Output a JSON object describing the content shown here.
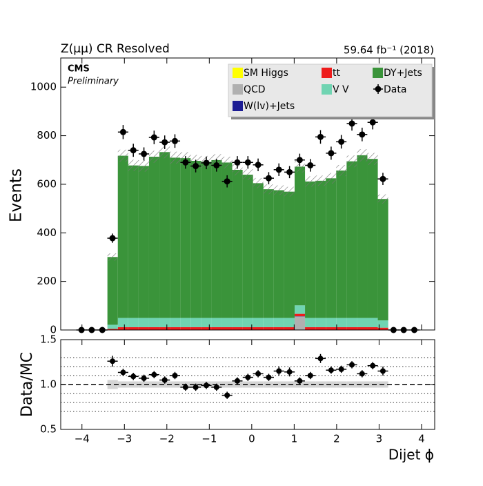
{
  "chart_data": [
    {
      "type": "stacked_histogram",
      "title": "Z(μμ) CR Resolved",
      "subtitle": "59.64 fb⁻¹ (2018)",
      "experiment": "CMS",
      "status": "Preliminary",
      "ylabel": "Events",
      "xlim": [
        -4.5,
        4.31
      ],
      "ylim": [
        0,
        1120
      ],
      "yticks": [
        0,
        200,
        400,
        600,
        800,
        1000
      ],
      "bins": [
        -3.4,
        -3.155,
        -2.91,
        -2.665,
        -2.42,
        -2.175,
        -1.93,
        -1.685,
        -1.44,
        -1.195,
        -0.95,
        -0.705,
        -0.46,
        -0.215,
        0.03,
        0.275,
        0.52,
        0.765,
        1.01,
        1.255,
        1.5,
        1.745,
        1.99,
        2.235,
        2.48,
        2.725,
        2.97,
        3.215
      ],
      "legend_position": "upper right",
      "series": [
        {
          "name": "SM Higgs",
          "color": "#ffff00",
          "values": [
            0.5,
            0.5,
            0.5,
            0.5,
            0.5,
            0.5,
            0.5,
            0.5,
            0.5,
            0.5,
            0.5,
            0.5,
            0.5,
            0.5,
            0.5,
            0.5,
            0.5,
            0.5,
            0.5,
            0.5,
            0.5,
            0.5,
            0.5,
            0.5,
            0.5,
            0.5,
            0.5
          ]
        },
        {
          "name": "QCD",
          "color": "#b0b0b0",
          "values": [
            0,
            0,
            0,
            0,
            0,
            0,
            0,
            0,
            0,
            0,
            0,
            0,
            0,
            0,
            0,
            0,
            0,
            0,
            55,
            0,
            0,
            0,
            0,
            0,
            0,
            0,
            0
          ]
        },
        {
          "name": "W(lv)+Jets",
          "color": "#1c1c94",
          "values": [
            1,
            1,
            1,
            1,
            1,
            1,
            1,
            1,
            1,
            1,
            1,
            1,
            1,
            1,
            1,
            1,
            1,
            1,
            1,
            1,
            1,
            1,
            1,
            1,
            1,
            1,
            1
          ]
        },
        {
          "name": "tt",
          "color": "#ee1c1c",
          "values": [
            3,
            10,
            10,
            10,
            10,
            10,
            10,
            10,
            10,
            10,
            10,
            10,
            10,
            10,
            10,
            10,
            10,
            10,
            10,
            10,
            10,
            10,
            10,
            10,
            10,
            10,
            8
          ]
        },
        {
          "name": "V V",
          "color": "#70d4b2",
          "values": [
            17,
            38,
            38,
            38,
            38,
            38,
            38,
            38,
            38,
            38,
            38,
            38,
            38,
            38,
            38,
            38,
            38,
            38,
            35,
            38,
            38,
            38,
            38,
            38,
            38,
            38,
            30
          ]
        },
        {
          "name": "DY+Jets",
          "color": "#3a943a",
          "values": [
            279,
            668,
            628,
            626,
            664,
            683,
            660,
            658,
            647,
            643,
            650,
            640,
            610,
            590,
            555,
            530,
            526,
            520,
            571,
            562,
            565,
            575,
            607,
            645,
            670,
            655,
            500
          ]
        }
      ],
      "mc_rel_uncertainty": [
        0.05,
        0.035,
        0.035,
        0.035,
        0.035,
        0.035,
        0.035,
        0.035,
        0.035,
        0.035,
        0.035,
        0.035,
        0.035,
        0.035,
        0.035,
        0.035,
        0.035,
        0.035,
        0.035,
        0.035,
        0.035,
        0.035,
        0.035,
        0.035,
        0.035,
        0.035,
        0.035
      ],
      "data_points": {
        "name": "Data",
        "color": "#000000",
        "x": [
          -4.01,
          -3.77,
          -3.52,
          -3.28,
          -3.03,
          -2.79,
          -2.54,
          -2.3,
          -2.05,
          -1.81,
          -1.56,
          -1.32,
          -1.07,
          -0.83,
          -0.58,
          -0.34,
          -0.09,
          0.15,
          0.4,
          0.64,
          0.89,
          1.13,
          1.38,
          1.62,
          1.87,
          2.11,
          2.36,
          2.6,
          2.85,
          3.09,
          3.34,
          3.58,
          3.83
        ],
        "values": [
          0,
          0,
          0,
          378,
          815,
          740,
          725,
          793,
          773,
          778,
          690,
          675,
          688,
          678,
          612,
          690,
          690,
          680,
          625,
          660,
          650,
          700,
          678,
          795,
          728,
          775,
          850,
          805,
          855,
          622,
          0,
          0,
          0
        ],
        "errors": [
          0,
          0,
          0,
          19,
          29,
          27,
          27,
          28,
          28,
          28,
          26,
          26,
          26,
          26,
          25,
          26,
          26,
          26,
          25,
          26,
          25,
          26,
          26,
          28,
          27,
          28,
          29,
          28,
          29,
          25,
          0,
          0,
          0
        ]
      }
    },
    {
      "type": "ratio",
      "ylabel": "Data/MC",
      "xlabel": "Dijet ϕ",
      "xlim": [
        -4.5,
        4.31
      ],
      "ylim": [
        0.5,
        1.5
      ],
      "xticks": [
        {
          "value": -4,
          "label": "−4"
        },
        {
          "value": -3,
          "label": "−3"
        },
        {
          "value": -2,
          "label": "−2"
        },
        {
          "value": -1,
          "label": "−1"
        },
        0,
        1,
        2,
        3,
        4
      ],
      "yticks": [
        0.5,
        {
          "value": 1,
          "label": "1.0"
        },
        1.5
      ],
      "dotted_lines": [
        0.7,
        0.8,
        0.9,
        1.1,
        1.2,
        1.3
      ],
      "dashed_line": 1,
      "x": [
        -3.28,
        -3.03,
        -2.79,
        -2.54,
        -2.3,
        -2.05,
        -1.81,
        -1.56,
        -1.32,
        -1.07,
        -0.83,
        -0.58,
        -0.34,
        -0.09,
        0.15,
        0.4,
        0.64,
        0.89,
        1.13,
        1.38,
        1.62,
        1.87,
        2.11,
        2.36,
        2.6,
        2.85,
        3.09
      ],
      "values": [
        1.26,
        1.135,
        1.09,
        1.07,
        1.11,
        1.05,
        1.1,
        0.97,
        0.97,
        0.99,
        0.97,
        0.88,
        1.04,
        1.08,
        1.12,
        1.08,
        1.15,
        1.14,
        1.04,
        1.1,
        1.29,
        1.16,
        1.17,
        1.22,
        1.12,
        1.21,
        1.15
      ],
      "errors": [
        0.06,
        0.04,
        0.04,
        0.04,
        0.04,
        0.04,
        0.04,
        0.04,
        0.04,
        0.04,
        0.04,
        0.04,
        0.04,
        0.04,
        0.04,
        0.04,
        0.05,
        0.05,
        0.04,
        0.04,
        0.05,
        0.04,
        0.04,
        0.04,
        0.04,
        0.04,
        0.05
      ]
    }
  ]
}
